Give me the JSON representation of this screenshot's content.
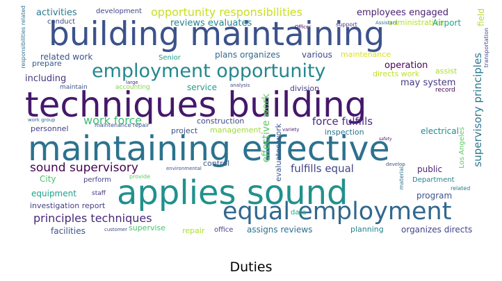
{
  "caption": "Duties",
  "words": [
    {
      "text": "building maintaining",
      "color": "#3b528b"
    },
    {
      "text": "techniques building",
      "color": "#46176b"
    },
    {
      "text": "maintaining effective",
      "color": "#2c728e"
    },
    {
      "text": "applies sound",
      "color": "#21918c"
    },
    {
      "text": "equal employment",
      "color": "#31688e"
    },
    {
      "text": "employment opportunity",
      "color": "#24878e"
    },
    {
      "text": "opportunity responsibilities",
      "color": "#c8e020"
    },
    {
      "text": "sound supervisory",
      "color": "#440154"
    },
    {
      "text": "principles techniques",
      "color": "#482878"
    },
    {
      "text": "supervisory principles",
      "color": "#2a788e"
    },
    {
      "text": "effective work",
      "color": "#5ec962"
    },
    {
      "text": "force fulfills",
      "color": "#472d7b"
    },
    {
      "text": "fulfills equal",
      "color": "#414487"
    },
    {
      "text": "work force",
      "color": "#3fbc73"
    },
    {
      "text": "activities",
      "color": "#2a788e"
    },
    {
      "text": "development",
      "color": "#404688"
    },
    {
      "text": "employees engaged",
      "color": "#481f71"
    },
    {
      "text": "reviews evaluates",
      "color": "#25848e"
    },
    {
      "text": "administrative",
      "color": "#b5de2b"
    },
    {
      "text": "Airport",
      "color": "#21a685"
    },
    {
      "text": "related work",
      "color": "#3b528b"
    },
    {
      "text": "plans organizes",
      "color": "#31688e"
    },
    {
      "text": "various",
      "color": "#3e4a89"
    },
    {
      "text": "maintenance",
      "color": "#d8e219"
    },
    {
      "text": "including",
      "color": "#46337f"
    },
    {
      "text": "operation",
      "color": "#440154"
    },
    {
      "text": "directs work",
      "color": "#bddf26"
    },
    {
      "text": "assist",
      "color": "#addc30"
    },
    {
      "text": "prepare",
      "color": "#38598c"
    },
    {
      "text": "Senior",
      "color": "#1fa188"
    },
    {
      "text": "may system",
      "color": "#453781"
    },
    {
      "text": "service",
      "color": "#1f9e89"
    },
    {
      "text": "division",
      "color": "#433e85"
    },
    {
      "text": "conduct",
      "color": "#3e4989"
    },
    {
      "text": "maintain",
      "color": "#39568c"
    },
    {
      "text": "accounting",
      "color": "#84d44b"
    },
    {
      "text": "record",
      "color": "#440154"
    },
    {
      "text": "personnel",
      "color": "#433e85"
    },
    {
      "text": "construction",
      "color": "#3e4989"
    },
    {
      "text": "project",
      "color": "#3b528b"
    },
    {
      "text": "management",
      "color": "#a2da37"
    },
    {
      "text": "inspection",
      "color": "#2c728e"
    },
    {
      "text": "electrical",
      "color": "#23898e"
    },
    {
      "text": "Los Angeles",
      "color": "#5ec962"
    },
    {
      "text": "control",
      "color": "#39568c"
    },
    {
      "text": "evaluates work",
      "color": "#3a548c"
    },
    {
      "text": "public",
      "color": "#481f71"
    },
    {
      "text": "City",
      "color": "#4ac16d"
    },
    {
      "text": "perform",
      "color": "#424086"
    },
    {
      "text": "Department",
      "color": "#26828e"
    },
    {
      "text": "equipment",
      "color": "#1fa088"
    },
    {
      "text": "staff",
      "color": "#46337f"
    },
    {
      "text": "investigation report",
      "color": "#433e85"
    },
    {
      "text": "program",
      "color": "#3b528b"
    },
    {
      "text": "facilities",
      "color": "#3b528b"
    },
    {
      "text": "supervise",
      "color": "#4ac16d"
    },
    {
      "text": "repair",
      "color": "#addc30"
    },
    {
      "text": "office",
      "color": "#414487"
    },
    {
      "text": "assigns reviews",
      "color": "#2d708e"
    },
    {
      "text": "planning",
      "color": "#25848e"
    },
    {
      "text": "organizes directs",
      "color": "#414487"
    },
    {
      "text": "data",
      "color": "#22a884"
    },
    {
      "text": "maintenance repair",
      "color": "#3b528b"
    },
    {
      "text": "analysis",
      "color": "#404688"
    },
    {
      "text": "support",
      "color": "#453781"
    },
    {
      "text": "Assistant",
      "color": "#2a788e"
    },
    {
      "text": "Officer",
      "color": "#440154"
    },
    {
      "text": "responsibilities related",
      "color": "#2d708e"
    },
    {
      "text": "field",
      "color": "#b5de2b"
    },
    {
      "text": "transportation",
      "color": "#414487"
    },
    {
      "text": "material",
      "color": "#2c728e"
    },
    {
      "text": "related",
      "color": "#2a788e"
    },
    {
      "text": "provide",
      "color": "#5ec962"
    },
    {
      "text": "customer",
      "color": "#3e4a89"
    },
    {
      "text": "develop",
      "color": "#3b528b"
    },
    {
      "text": "environmental",
      "color": "#39568c"
    },
    {
      "text": "large",
      "color": "#46337f"
    },
    {
      "text": "safety",
      "color": "#481f71"
    },
    {
      "text": "variety",
      "color": "#481f71"
    },
    {
      "text": "work group",
      "color": "#31688e"
    }
  ]
}
